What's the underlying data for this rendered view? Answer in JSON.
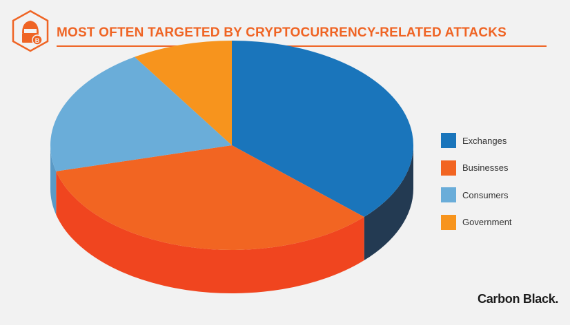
{
  "title": "MOST OFTEN TARGETED BY CRYPTOCURRENCY-RELATED ATTACKS",
  "brand": "Carbon Black.",
  "colors": {
    "accent": "#ef6424",
    "background": "#f2f2f2"
  },
  "header_icon": "hacker-bitcoin-icon",
  "chart_data": {
    "type": "pie",
    "style": "3d",
    "title": "MOST OFTEN TARGETED BY CRYPTOCURRENCY-RELATED ATTACKS",
    "legend_position": "right",
    "categories": [
      "Exchanges",
      "Businesses",
      "Consumers",
      "Government"
    ],
    "values": [
      37,
      34,
      20,
      9
    ],
    "unit": "%",
    "colors": [
      "#1a75bb",
      "#f26522",
      "#6aadd9",
      "#f7941d"
    ],
    "side_colors": [
      "#233a52",
      "#f0451f",
      "#5a9ac6",
      "#d9801a"
    ]
  }
}
